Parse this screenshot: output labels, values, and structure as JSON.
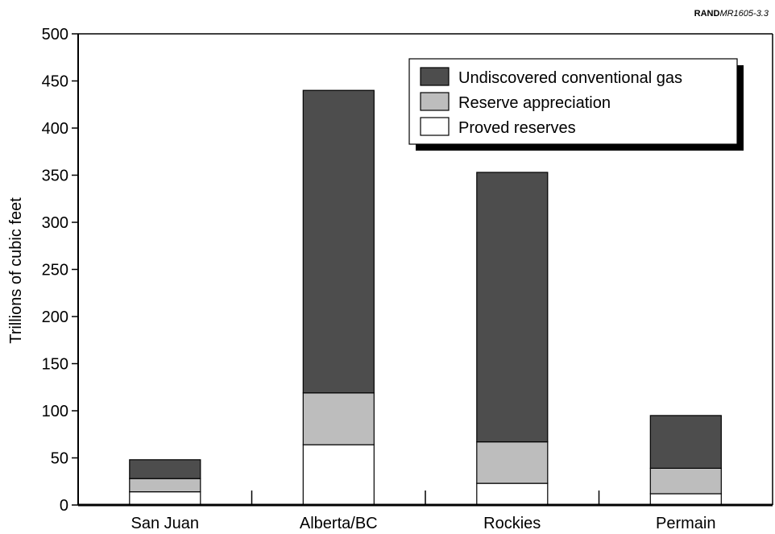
{
  "source_label": {
    "bold": "RAND",
    "italic": "MR1605-3.3"
  },
  "chart_data": {
    "type": "bar",
    "stacked": true,
    "categories": [
      "San Juan",
      "Alberta/BC",
      "Rockies",
      "Permain"
    ],
    "series": [
      {
        "name": "Proved reserves",
        "values": [
          14,
          64,
          23,
          12
        ],
        "color": "#ffffff"
      },
      {
        "name": "Reserve appreciation",
        "values": [
          14,
          55,
          44,
          27
        ],
        "color": "#bdbdbd"
      },
      {
        "name": "Undiscovered conventional gas",
        "values": [
          20,
          321,
          286,
          56
        ],
        "color": "#4d4d4d"
      }
    ],
    "legend_order": [
      "Undiscovered conventional gas",
      "Reserve appreciation",
      "Proved reserves"
    ],
    "legend_position": "top-right",
    "ylabel": "Trillions of cubic feet",
    "xlabel": "",
    "ylim": [
      0,
      500
    ],
    "yticks": [
      0,
      50,
      100,
      150,
      200,
      250,
      300,
      350,
      400,
      450,
      500
    ],
    "grid": false
  }
}
